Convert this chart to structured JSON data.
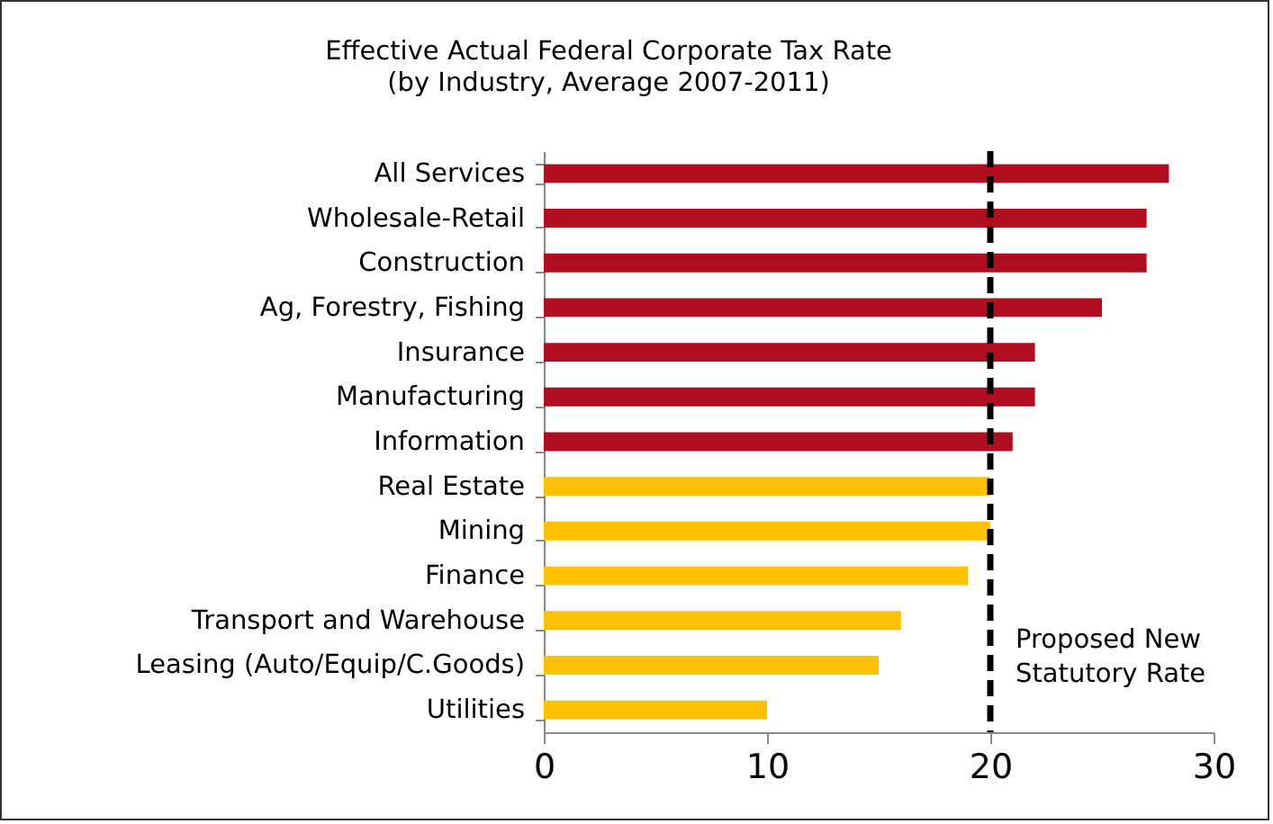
{
  "chart_data": {
    "type": "bar",
    "orientation": "horizontal",
    "title": "Effective Actual Federal Corporate Tax Rate",
    "subtitle": "(by Industry, Average 2007-2011)",
    "categories": [
      "All Services",
      "Wholesale-Retail",
      "Construction",
      "Ag, Forestry, Fishing",
      "Insurance",
      "Manufacturing",
      "Information",
      "Real Estate",
      "Mining",
      "Finance",
      "Transport and Warehouse",
      "Leasing (Auto/Equip/C.Goods)",
      "Utilities"
    ],
    "values": [
      28,
      27,
      27,
      25,
      22,
      22,
      21,
      20,
      20,
      19,
      16,
      15,
      10
    ],
    "colors": [
      "#b00d1e",
      "#b00d1e",
      "#b00d1e",
      "#b00d1e",
      "#b00d1e",
      "#b00d1e",
      "#b00d1e",
      "#ffc000",
      "#ffc000",
      "#ffc000",
      "#ffc000",
      "#ffc000",
      "#ffc000"
    ],
    "xlim": [
      0,
      30
    ],
    "xticks": [
      0,
      10,
      20,
      30
    ],
    "grid": false,
    "ref_lines": [
      {
        "axis": "x",
        "value": 20,
        "label": "Proposed New Statutory Rate",
        "color": "#000000",
        "line_style": "dashed"
      }
    ]
  }
}
